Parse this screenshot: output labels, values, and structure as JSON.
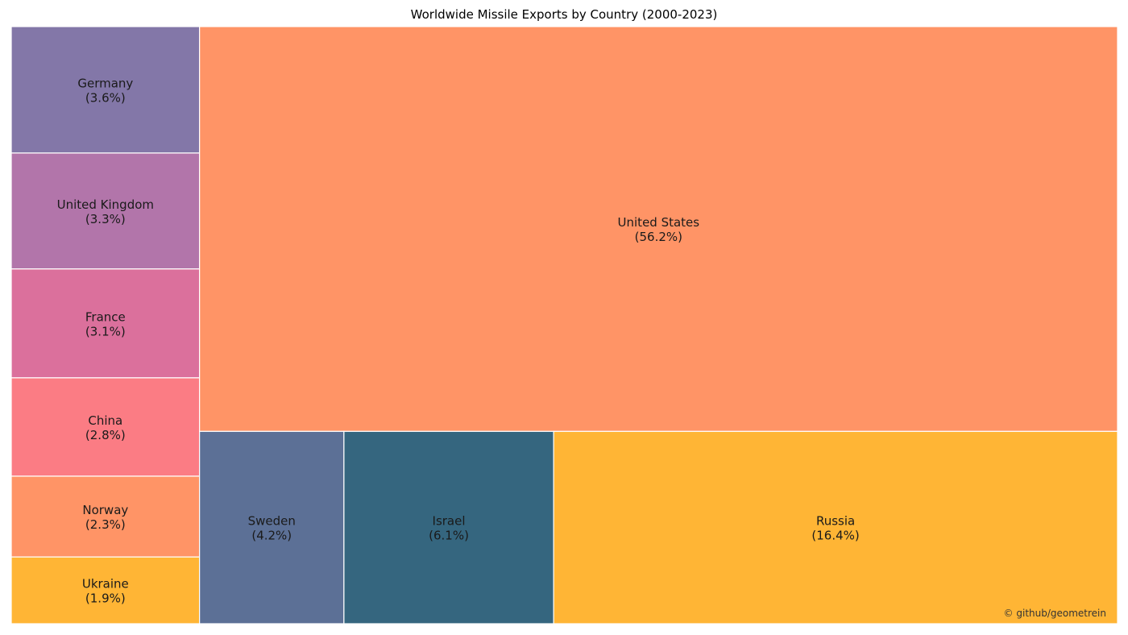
{
  "chart_data": {
    "type": "treemap",
    "title": "Worldwide Missile Exports by Country (2000-2023)",
    "series": [
      {
        "name": "United States",
        "percent_label": "(56.2%)",
        "value": 56.2,
        "color": "#FF9466"
      },
      {
        "name": "Russia",
        "percent_label": "(16.4%)",
        "value": 16.4,
        "color": "#FFB535"
      },
      {
        "name": "Israel",
        "percent_label": "(6.1%)",
        "value": 6.1,
        "color": "#35667F"
      },
      {
        "name": "Sweden",
        "percent_label": "(4.2%)",
        "value": 4.2,
        "color": "#5C7096"
      },
      {
        "name": "Germany",
        "percent_label": "(3.6%)",
        "value": 3.6,
        "color": "#8377A8"
      },
      {
        "name": "United Kingdom",
        "percent_label": "(3.3%)",
        "value": 3.3,
        "color": "#B275AA"
      },
      {
        "name": "France",
        "percent_label": "(3.1%)",
        "value": 3.1,
        "color": "#DB709C"
      },
      {
        "name": "China",
        "percent_label": "(2.8%)",
        "value": 2.8,
        "color": "#FB7C84"
      },
      {
        "name": "Norway",
        "percent_label": "(2.3%)",
        "value": 2.3,
        "color": "#FF9466"
      },
      {
        "name": "Ukraine",
        "percent_label": "(1.9%)",
        "value": 1.9,
        "color": "#FFB535"
      }
    ]
  },
  "watermark": "© github/geometrein"
}
